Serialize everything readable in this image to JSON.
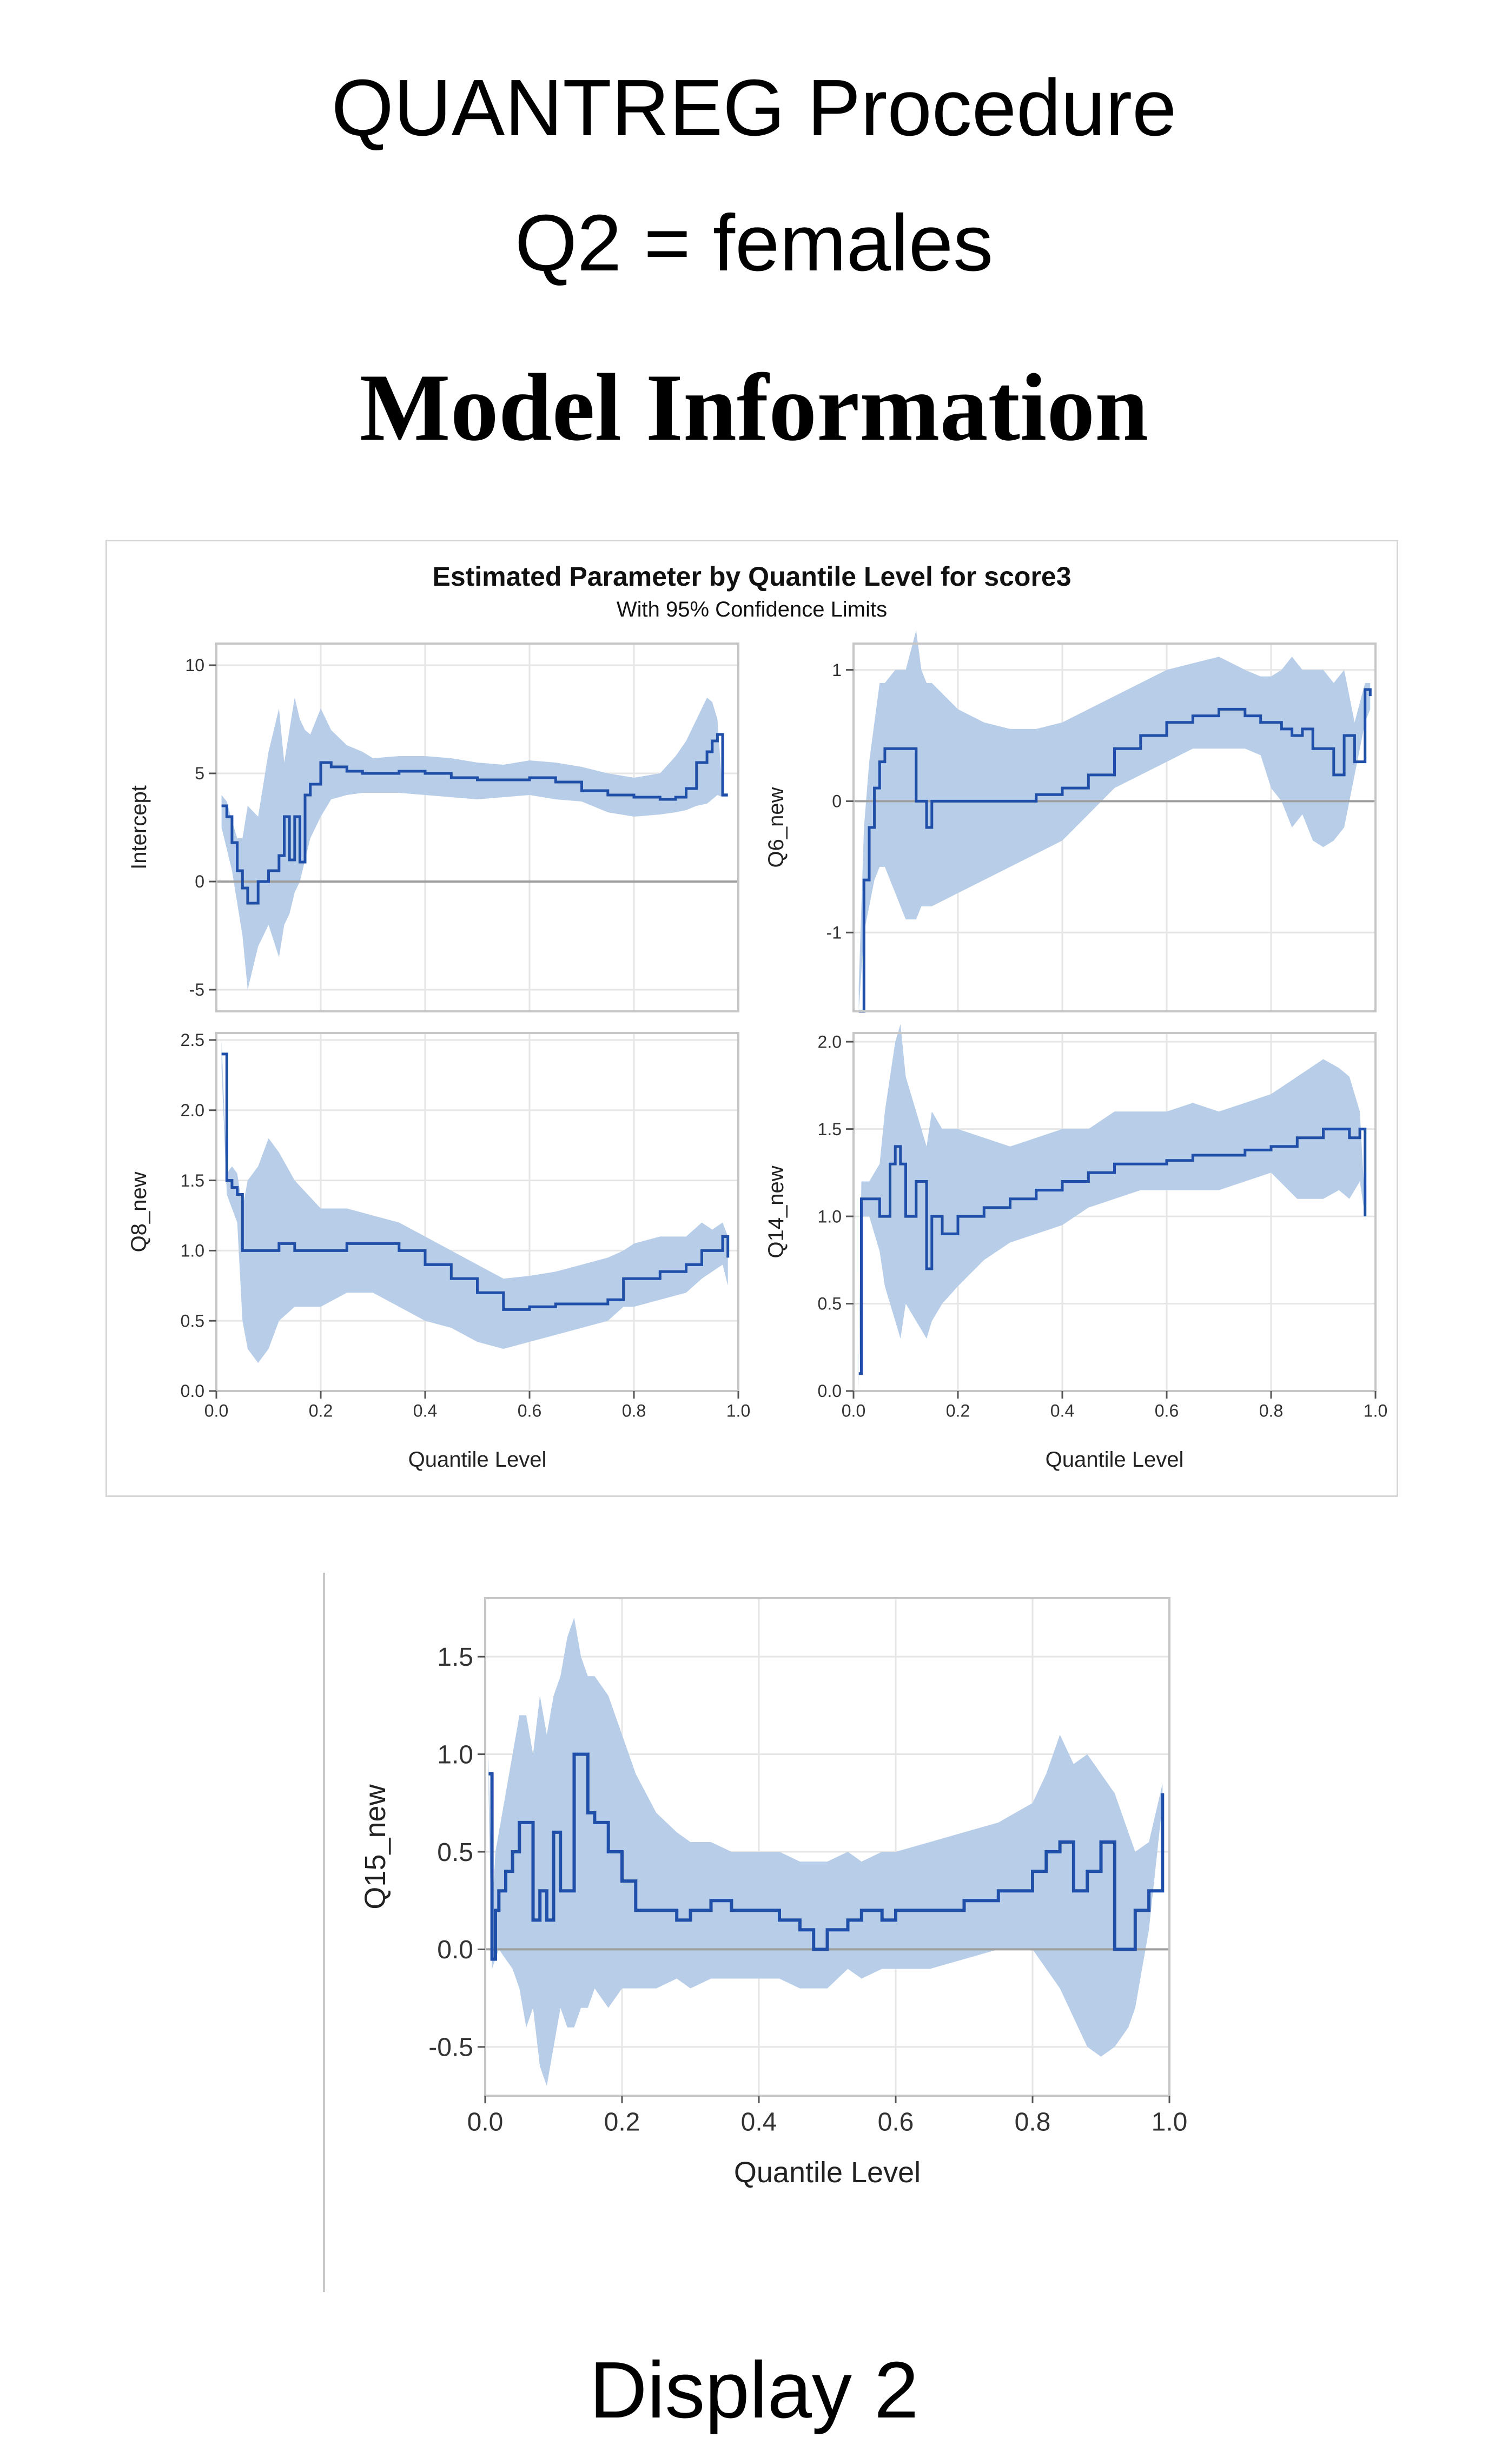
{
  "header": {
    "procedure": "QUANTREG Procedure",
    "subset": "Q2 = females",
    "section": "Model Information"
  },
  "caption": "Display 2",
  "colors": {
    "line": "#1f4fa8",
    "band": "#b8cde8",
    "grid": "#e6e6e6",
    "zero": "#9e9e9e",
    "frame": "#c6c6c6"
  },
  "chart_data": [
    {
      "type": "line",
      "title": "Estimated Parameter by Quantile Level for score3",
      "subtitle": "With 95% Confidence Limits",
      "panels": [
        {
          "ylabel": "Intercept",
          "xlabel": "",
          "xlim": [
            0,
            1
          ],
          "ylim": [
            -6,
            11
          ],
          "yticks": [
            "10",
            "5",
            "0",
            "-5"
          ],
          "ytick_values": [
            10,
            5,
            0,
            -5
          ],
          "xticks": [],
          "xtick_values": [],
          "x": [
            0.01,
            0.02,
            0.03,
            0.04,
            0.05,
            0.06,
            0.08,
            0.1,
            0.12,
            0.13,
            0.14,
            0.15,
            0.16,
            0.17,
            0.18,
            0.2,
            0.22,
            0.25,
            0.28,
            0.3,
            0.35,
            0.4,
            0.45,
            0.5,
            0.55,
            0.6,
            0.65,
            0.7,
            0.75,
            0.8,
            0.85,
            0.88,
            0.9,
            0.92,
            0.94,
            0.95,
            0.96,
            0.97,
            0.98
          ],
          "y": [
            3.5,
            3.0,
            1.8,
            0.5,
            -0.3,
            -1.0,
            0,
            0.5,
            1.2,
            3.0,
            1.0,
            3.0,
            0.9,
            4.0,
            4.5,
            5.5,
            5.3,
            5.1,
            5.0,
            5.0,
            5.1,
            5.0,
            4.8,
            4.7,
            4.7,
            4.8,
            4.6,
            4.2,
            4.0,
            3.9,
            3.8,
            3.9,
            4.3,
            5.5,
            6.0,
            6.5,
            6.8,
            4.0,
            4.0
          ],
          "lower": [
            2.5,
            1.5,
            0.5,
            -1.0,
            -2.5,
            -5.0,
            -3.0,
            -2.0,
            -3.5,
            -2.0,
            -1.5,
            -0.5,
            0,
            1.0,
            2.0,
            3.0,
            3.8,
            4.0,
            4.1,
            4.1,
            4.1,
            4.0,
            3.9,
            3.8,
            3.9,
            4.0,
            3.8,
            3.7,
            3.2,
            3.0,
            3.1,
            3.2,
            3.3,
            3.5,
            3.6,
            3.8,
            4.0,
            3.9,
            3.9
          ],
          "upper": [
            4.0,
            3.7,
            2.8,
            2.0,
            2.0,
            3.5,
            3.0,
            6.0,
            8.0,
            5.5,
            7.0,
            8.5,
            7.5,
            7.0,
            6.8,
            8.0,
            7.0,
            6.3,
            6.0,
            5.7,
            5.8,
            5.8,
            5.7,
            5.5,
            5.4,
            5.6,
            5.5,
            5.3,
            5.0,
            4.8,
            5.0,
            5.8,
            6.5,
            7.5,
            8.5,
            8.3,
            7.5,
            4.1,
            4.1
          ]
        },
        {
          "ylabel": "Q6_new",
          "xlabel": "",
          "xlim": [
            0,
            1
          ],
          "ylim": [
            -1.6,
            1.2
          ],
          "yticks": [
            "1",
            "0",
            "-1"
          ],
          "ytick_values": [
            1,
            0,
            -1
          ],
          "xticks": [],
          "xtick_values": [],
          "x": [
            0.01,
            0.02,
            0.03,
            0.04,
            0.05,
            0.06,
            0.08,
            0.1,
            0.12,
            0.13,
            0.14,
            0.15,
            0.2,
            0.25,
            0.3,
            0.35,
            0.4,
            0.45,
            0.5,
            0.55,
            0.6,
            0.65,
            0.7,
            0.75,
            0.78,
            0.8,
            0.82,
            0.84,
            0.86,
            0.88,
            0.9,
            0.92,
            0.94,
            0.96,
            0.98,
            0.99
          ],
          "y": [
            -1.6,
            -0.6,
            -0.2,
            0.1,
            0.3,
            0.4,
            0.4,
            0.4,
            0,
            0,
            -0.2,
            0,
            0,
            0,
            0,
            0.05,
            0.1,
            0.2,
            0.4,
            0.5,
            0.6,
            0.65,
            0.7,
            0.65,
            0.6,
            0.6,
            0.55,
            0.5,
            0.55,
            0.4,
            0.4,
            0.2,
            0.5,
            0.3,
            0.85,
            0.8
          ],
          "lower": [
            -1.6,
            -1.0,
            -0.8,
            -0.6,
            -0.5,
            -0.5,
            -0.7,
            -0.9,
            -0.9,
            -0.8,
            -0.8,
            -0.8,
            -0.7,
            -0.6,
            -0.5,
            -0.4,
            -0.3,
            -0.1,
            0.1,
            0.2,
            0.3,
            0.4,
            0.4,
            0.4,
            0.35,
            0.1,
            0,
            -0.2,
            -0.1,
            -0.3,
            -0.35,
            -0.3,
            -0.2,
            0.2,
            0.6,
            0.7
          ],
          "upper": [
            -1.4,
            -0.2,
            0.3,
            0.6,
            0.9,
            0.9,
            1.0,
            1.0,
            1.3,
            1.0,
            0.9,
            0.9,
            0.7,
            0.6,
            0.55,
            0.55,
            0.6,
            0.7,
            0.8,
            0.9,
            1.0,
            1.05,
            1.1,
            1.0,
            0.95,
            0.95,
            1.0,
            1.1,
            1.0,
            1.0,
            1.0,
            0.9,
            1.0,
            0.6,
            0.9,
            0.9
          ]
        },
        {
          "ylabel": "Q8_new",
          "xlabel": "Quantile Level",
          "xlim": [
            0,
            1
          ],
          "ylim": [
            0,
            2.55
          ],
          "yticks": [
            "2.5",
            "2.0",
            "1.5",
            "1.0",
            "0.5",
            "0.0"
          ],
          "ytick_values": [
            2.5,
            2.0,
            1.5,
            1.0,
            0.5,
            0.0
          ],
          "xticks": [
            "0.0",
            "0.2",
            "0.4",
            "0.6",
            "0.8",
            "1.0"
          ],
          "xtick_values": [
            0,
            0.2,
            0.4,
            0.6,
            0.8,
            1.0
          ],
          "x": [
            0.01,
            0.02,
            0.03,
            0.04,
            0.05,
            0.06,
            0.08,
            0.1,
            0.12,
            0.15,
            0.2,
            0.25,
            0.3,
            0.35,
            0.4,
            0.45,
            0.5,
            0.55,
            0.6,
            0.65,
            0.7,
            0.75,
            0.78,
            0.8,
            0.85,
            0.9,
            0.93,
            0.95,
            0.97,
            0.98
          ],
          "y": [
            2.4,
            1.5,
            1.45,
            1.4,
            1.0,
            1.0,
            1.0,
            1.0,
            1.05,
            1.0,
            1.0,
            1.05,
            1.05,
            1.0,
            0.9,
            0.8,
            0.7,
            0.58,
            0.6,
            0.62,
            0.62,
            0.65,
            0.8,
            0.8,
            0.85,
            0.9,
            1.0,
            1.0,
            1.1,
            0.95
          ],
          "lower": [
            2.3,
            1.4,
            1.3,
            1.2,
            0.5,
            0.3,
            0.2,
            0.3,
            0.5,
            0.6,
            0.6,
            0.7,
            0.7,
            0.6,
            0.5,
            0.45,
            0.35,
            0.3,
            0.35,
            0.4,
            0.45,
            0.5,
            0.6,
            0.6,
            0.65,
            0.7,
            0.8,
            0.85,
            0.9,
            0.75
          ],
          "upper": [
            2.5,
            1.55,
            1.6,
            1.55,
            1.3,
            1.5,
            1.6,
            1.8,
            1.7,
            1.5,
            1.3,
            1.3,
            1.25,
            1.2,
            1.1,
            1.0,
            0.9,
            0.8,
            0.82,
            0.85,
            0.9,
            0.95,
            1.0,
            1.05,
            1.1,
            1.1,
            1.2,
            1.15,
            1.2,
            1.1
          ]
        },
        {
          "ylabel": "Q14_new",
          "xlabel": "Quantile Level",
          "xlim": [
            0,
            1
          ],
          "ylim": [
            0,
            2.05
          ],
          "yticks": [
            "2.0",
            "1.5",
            "1.0",
            "0.5",
            "0.0"
          ],
          "ytick_values": [
            2.0,
            1.5,
            1.0,
            0.5,
            0.0
          ],
          "xticks": [
            "0.0",
            "0.2",
            "0.4",
            "0.6",
            "0.8",
            "1.0"
          ],
          "xtick_values": [
            0,
            0.2,
            0.4,
            0.6,
            0.8,
            1.0
          ],
          "x": [
            0.01,
            0.015,
            0.02,
            0.03,
            0.05,
            0.06,
            0.07,
            0.08,
            0.09,
            0.1,
            0.12,
            0.14,
            0.15,
            0.17,
            0.2,
            0.25,
            0.3,
            0.35,
            0.4,
            0.45,
            0.5,
            0.55,
            0.6,
            0.65,
            0.7,
            0.75,
            0.8,
            0.85,
            0.9,
            0.93,
            0.95,
            0.97,
            0.98
          ],
          "y": [
            0.1,
            1.1,
            1.1,
            1.1,
            1.0,
            1.0,
            1.3,
            1.4,
            1.3,
            1.0,
            1.2,
            0.7,
            1.0,
            0.9,
            1.0,
            1.05,
            1.1,
            1.15,
            1.2,
            1.25,
            1.3,
            1.3,
            1.32,
            1.35,
            1.35,
            1.38,
            1.4,
            1.45,
            1.5,
            1.5,
            1.45,
            1.5,
            1.0
          ],
          "lower": [
            0,
            1.0,
            1.0,
            1.0,
            0.8,
            0.6,
            0.5,
            0.4,
            0.3,
            0.5,
            0.4,
            0.3,
            0.4,
            0.5,
            0.6,
            0.75,
            0.85,
            0.9,
            0.95,
            1.05,
            1.1,
            1.15,
            1.15,
            1.15,
            1.15,
            1.2,
            1.25,
            1.1,
            1.1,
            1.15,
            1.1,
            1.2,
            1.0
          ],
          "upper": [
            0.2,
            1.2,
            1.2,
            1.2,
            1.3,
            1.6,
            1.8,
            2.0,
            2.1,
            1.8,
            1.6,
            1.4,
            1.6,
            1.5,
            1.5,
            1.45,
            1.4,
            1.45,
            1.5,
            1.5,
            1.6,
            1.6,
            1.6,
            1.65,
            1.6,
            1.65,
            1.7,
            1.8,
            1.9,
            1.85,
            1.8,
            1.6,
            1.05
          ]
        }
      ]
    },
    {
      "type": "line",
      "title": "",
      "ylabel": "Q15_new",
      "xlabel": "Quantile Level",
      "xlim": [
        0,
        1
      ],
      "ylim": [
        -0.75,
        1.8
      ],
      "yticks": [
        "1.5",
        "1.0",
        "0.5",
        "0.0",
        "-0.5"
      ],
      "ytick_values": [
        1.5,
        1.0,
        0.5,
        0.0,
        -0.5
      ],
      "xticks": [
        "0.0",
        "0.2",
        "0.4",
        "0.6",
        "0.8",
        "1.0"
      ],
      "xtick_values": [
        0,
        0.2,
        0.4,
        0.6,
        0.8,
        1.0
      ],
      "x": [
        0.005,
        0.01,
        0.015,
        0.02,
        0.03,
        0.04,
        0.05,
        0.06,
        0.07,
        0.08,
        0.09,
        0.1,
        0.11,
        0.12,
        0.13,
        0.14,
        0.15,
        0.16,
        0.18,
        0.2,
        0.22,
        0.25,
        0.28,
        0.3,
        0.33,
        0.36,
        0.4,
        0.43,
        0.46,
        0.48,
        0.5,
        0.53,
        0.55,
        0.58,
        0.6,
        0.65,
        0.7,
        0.75,
        0.8,
        0.82,
        0.84,
        0.86,
        0.88,
        0.9,
        0.92,
        0.94,
        0.95,
        0.97,
        0.99
      ],
      "y": [
        0.9,
        -0.05,
        0.2,
        0.3,
        0.4,
        0.5,
        0.65,
        0.65,
        0.15,
        0.3,
        0.15,
        0.6,
        0.3,
        0.3,
        1.0,
        1.0,
        0.7,
        0.65,
        0.5,
        0.35,
        0.2,
        0.2,
        0.15,
        0.2,
        0.25,
        0.2,
        0.2,
        0.15,
        0.1,
        0,
        0.1,
        0.15,
        0.2,
        0.15,
        0.2,
        0.2,
        0.25,
        0.3,
        0.4,
        0.5,
        0.55,
        0.3,
        0.4,
        0.55,
        0,
        0,
        0.2,
        0.3,
        0.8
      ],
      "lower": [
        0.8,
        -0.1,
        -0.05,
        0,
        -0.05,
        -0.1,
        -0.2,
        -0.4,
        -0.3,
        -0.6,
        -0.7,
        -0.5,
        -0.3,
        -0.4,
        -0.4,
        -0.3,
        -0.3,
        -0.2,
        -0.3,
        -0.2,
        -0.2,
        -0.2,
        -0.15,
        -0.2,
        -0.15,
        -0.15,
        -0.15,
        -0.15,
        -0.2,
        -0.2,
        -0.2,
        -0.1,
        -0.15,
        -0.1,
        -0.1,
        -0.1,
        -0.05,
        0,
        0,
        -0.1,
        -0.2,
        -0.35,
        -0.5,
        -0.55,
        -0.5,
        -0.4,
        -0.3,
        0.1,
        0.75
      ],
      "upper": [
        1.0,
        0.2,
        0.5,
        0.6,
        0.8,
        1.0,
        1.2,
        1.2,
        1.0,
        1.3,
        1.1,
        1.3,
        1.4,
        1.6,
        1.7,
        1.5,
        1.4,
        1.4,
        1.3,
        1.1,
        0.9,
        0.7,
        0.6,
        0.55,
        0.55,
        0.5,
        0.5,
        0.5,
        0.45,
        0.45,
        0.45,
        0.5,
        0.45,
        0.5,
        0.5,
        0.55,
        0.6,
        0.65,
        0.75,
        0.9,
        1.1,
        0.95,
        1.0,
        0.9,
        0.8,
        0.6,
        0.5,
        0.55,
        0.85
      ]
    }
  ]
}
